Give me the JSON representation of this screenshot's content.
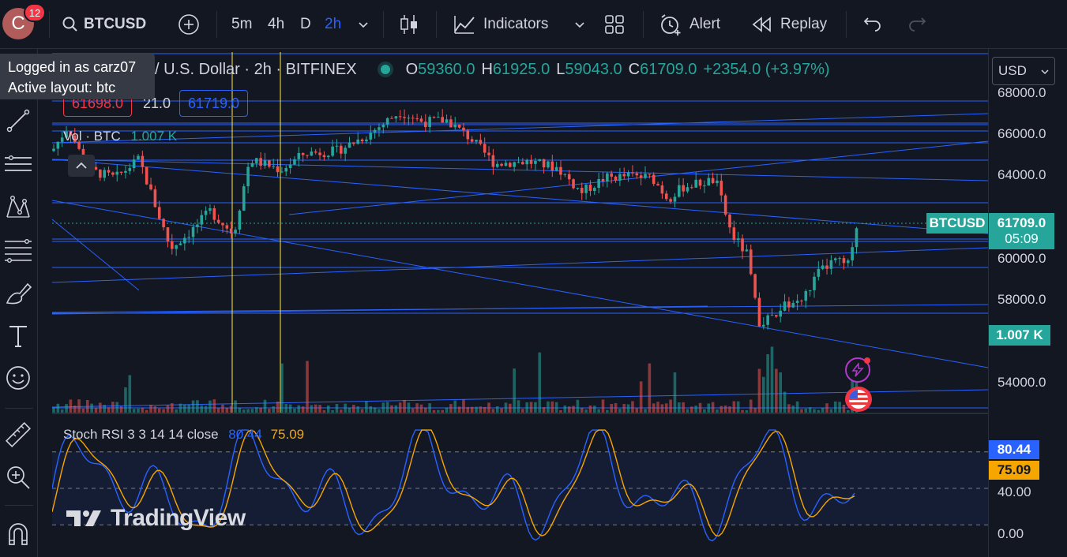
{
  "user": {
    "initial": "C",
    "notifications": "12"
  },
  "toolbar": {
    "symbol": "BTCUSD",
    "intervals": [
      "5m",
      "4h",
      "D",
      "2h"
    ],
    "indicators_label": "Indicators",
    "alert_label": "Alert",
    "replay_label": "Replay"
  },
  "tooltip": {
    "line1": "Logged in as carz07",
    "line2": "Active layout: btc"
  },
  "legend": {
    "title": "/ U.S. Dollar · 2h · BITFINEX",
    "open_key": "O",
    "open": "59360.0",
    "high_key": "H",
    "high": "61925.0",
    "low_key": "L",
    "low": "59043.0",
    "close_key": "C",
    "close": "61709.0",
    "change": "+2354.0 (+3.97%)",
    "sell_price": "61698.0",
    "spread": "21.0",
    "buy_price": "61719.0"
  },
  "volume_legend": {
    "label": "Vol · BTC",
    "value": "1.007 K"
  },
  "stoch_legend": {
    "label": "Stoch RSI 3 3 14 14 close",
    "k": "80.44",
    "d": "75.09"
  },
  "watermark": "TradingView",
  "axis": {
    "currency": "USD",
    "ticks": [
      "68000.0",
      "66000.0",
      "64000.0",
      "60000.0",
      "58000.0",
      "54000.0"
    ],
    "last_price_symbol": "BTCUSD",
    "last_price": "61709.0",
    "countdown": "05:09",
    "volume_label": "1.007 K",
    "stoch_ticks": [
      "40.00",
      "0.00"
    ],
    "stoch_k": "80.44",
    "stoch_d": "75.09"
  },
  "colors": {
    "up": "#26a69a",
    "down": "#ef5350",
    "line": "#2962ff",
    "stoch_k": "#2962ff",
    "stoch_d": "#f7a600",
    "vertical": "#ffeb3b"
  }
}
